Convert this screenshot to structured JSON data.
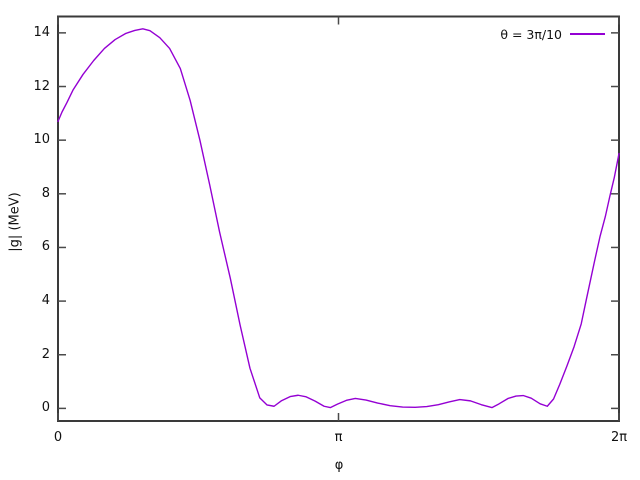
{
  "chart_data": {
    "type": "line",
    "title": "",
    "xlabel": "φ",
    "ylabel": "|g| (MeV)",
    "xlim": [
      0,
      6.28319
    ],
    "ylim": [
      -0.47,
      14.61
    ],
    "grid": false,
    "legend_position": "top-right",
    "background": "#ffffff",
    "border_color": "#3a3a3a",
    "tick_color": "#4a4a4a",
    "x_ticks": [
      {
        "value": 0,
        "label": "0"
      },
      {
        "value": 3.14159,
        "label": "π"
      },
      {
        "value": 6.28319,
        "label": "2π"
      }
    ],
    "y_ticks": [
      {
        "value": 0,
        "label": "0"
      },
      {
        "value": 2,
        "label": "2"
      },
      {
        "value": 4,
        "label": "4"
      },
      {
        "value": 6,
        "label": "6"
      },
      {
        "value": 8,
        "label": "8"
      },
      {
        "value": 10,
        "label": "10"
      },
      {
        "value": 12,
        "label": "12"
      },
      {
        "value": 14,
        "label": "14"
      }
    ],
    "series": [
      {
        "name": "θ = 3π/10",
        "color": "#9400d3",
        "points": [
          [
            0.0,
            10.7
          ],
          [
            0.045,
            11.05
          ],
          [
            0.1,
            11.4
          ],
          [
            0.17,
            11.88
          ],
          [
            0.28,
            12.45
          ],
          [
            0.4,
            12.97
          ],
          [
            0.52,
            13.42
          ],
          [
            0.64,
            13.75
          ],
          [
            0.76,
            13.98
          ],
          [
            0.86,
            14.09
          ],
          [
            0.95,
            14.15
          ],
          [
            1.03,
            14.08
          ],
          [
            1.14,
            13.82
          ],
          [
            1.25,
            13.42
          ],
          [
            1.37,
            12.67
          ],
          [
            1.48,
            11.48
          ],
          [
            1.59,
            9.99
          ],
          [
            1.7,
            8.32
          ],
          [
            1.81,
            6.57
          ],
          [
            1.93,
            4.85
          ],
          [
            2.04,
            3.1
          ],
          [
            2.15,
            1.5
          ],
          [
            2.26,
            0.39
          ],
          [
            2.34,
            0.13
          ],
          [
            2.42,
            0.08
          ],
          [
            2.5,
            0.28
          ],
          [
            2.6,
            0.44
          ],
          [
            2.69,
            0.49
          ],
          [
            2.78,
            0.43
          ],
          [
            2.88,
            0.27
          ],
          [
            2.98,
            0.08
          ],
          [
            3.05,
            0.03
          ],
          [
            3.13,
            0.16
          ],
          [
            3.23,
            0.3
          ],
          [
            3.33,
            0.37
          ],
          [
            3.45,
            0.31
          ],
          [
            3.58,
            0.2
          ],
          [
            3.72,
            0.1
          ],
          [
            3.86,
            0.05
          ],
          [
            4.0,
            0.04
          ],
          [
            4.13,
            0.07
          ],
          [
            4.26,
            0.14
          ],
          [
            4.38,
            0.24
          ],
          [
            4.5,
            0.33
          ],
          [
            4.62,
            0.28
          ],
          [
            4.74,
            0.14
          ],
          [
            4.86,
            0.03
          ],
          [
            4.94,
            0.17
          ],
          [
            5.04,
            0.37
          ],
          [
            5.13,
            0.46
          ],
          [
            5.21,
            0.48
          ],
          [
            5.3,
            0.38
          ],
          [
            5.4,
            0.17
          ],
          [
            5.48,
            0.08
          ],
          [
            5.55,
            0.35
          ],
          [
            5.62,
            0.9
          ],
          [
            5.7,
            1.58
          ],
          [
            5.78,
            2.3
          ],
          [
            5.86,
            3.15
          ],
          [
            5.92,
            4.1
          ],
          [
            6.01,
            5.5
          ],
          [
            6.07,
            6.4
          ],
          [
            6.13,
            7.15
          ],
          [
            6.18,
            7.9
          ],
          [
            6.23,
            8.6
          ],
          [
            6.28319,
            9.5
          ]
        ]
      }
    ]
  }
}
